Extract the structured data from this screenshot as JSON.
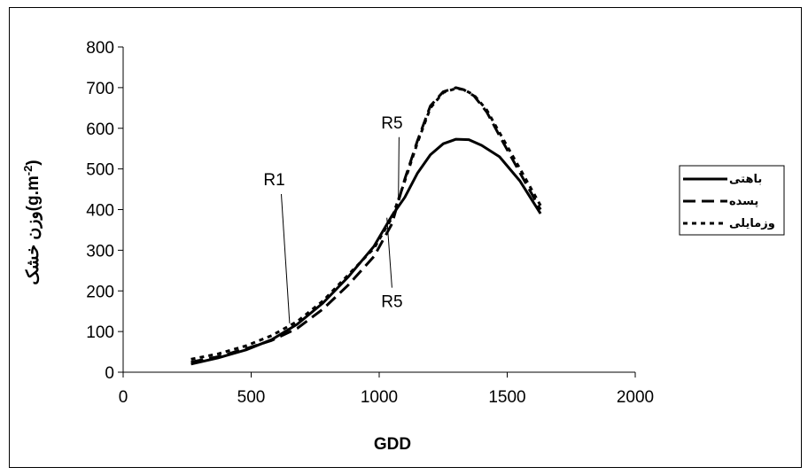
{
  "chart_data": {
    "type": "line",
    "xlabel": "GDD",
    "ylabel": "وزن خشک(g.m-2)",
    "ylabel_parts": {
      "base": "وزن خشک(g.m",
      "sup": "-2",
      "close": ")"
    },
    "xlim": [
      0,
      2000
    ],
    "ylim": [
      0,
      800
    ],
    "xticks": [
      0,
      500,
      1000,
      1500,
      2000
    ],
    "yticks": [
      0,
      100,
      200,
      300,
      400,
      500,
      600,
      700,
      800
    ],
    "grid": false,
    "legend_position": "right",
    "series": [
      {
        "name": "باهتی",
        "style": "solid",
        "x": [
          265,
          370,
          480,
          580,
          680,
          780,
          880,
          980,
          1050,
          1100,
          1150,
          1200,
          1250,
          1300,
          1350,
          1400,
          1470,
          1550,
          1630
        ],
        "y": [
          20,
          35,
          55,
          80,
          118,
          170,
          235,
          310,
          385,
          430,
          490,
          535,
          562,
          573,
          572,
          558,
          530,
          470,
          390
        ]
      },
      {
        "name": "پسده",
        "style": "dashed",
        "x": [
          265,
          370,
          480,
          580,
          680,
          780,
          880,
          980,
          1050,
          1100,
          1150,
          1200,
          1250,
          1300,
          1330,
          1370,
          1420,
          1480,
          1550,
          1630
        ],
        "y": [
          25,
          38,
          58,
          78,
          108,
          155,
          215,
          285,
          365,
          475,
          570,
          655,
          690,
          700,
          695,
          680,
          640,
          570,
          490,
          400
        ]
      },
      {
        "name": "وزمایلی",
        "style": "dotted",
        "x": [
          265,
          370,
          480,
          580,
          680,
          780,
          880,
          980,
          1050,
          1100,
          1150,
          1200,
          1250,
          1300,
          1330,
          1370,
          1420,
          1480,
          1550,
          1630
        ],
        "y": [
          32,
          45,
          65,
          90,
          125,
          175,
          240,
          305,
          380,
          470,
          565,
          650,
          688,
          698,
          695,
          682,
          645,
          578,
          500,
          410
        ]
      }
    ],
    "annotations": [
      {
        "text": "R1",
        "x": 650,
        "y": 120,
        "label_x": 590,
        "label_y": 460
      },
      {
        "text": "R5",
        "x": 1075,
        "y": 430,
        "label_x": 1050,
        "label_y": 600
      },
      {
        "text": "R5",
        "x": 1030,
        "y": 380,
        "label_x": 1050,
        "label_y": 160
      }
    ]
  }
}
